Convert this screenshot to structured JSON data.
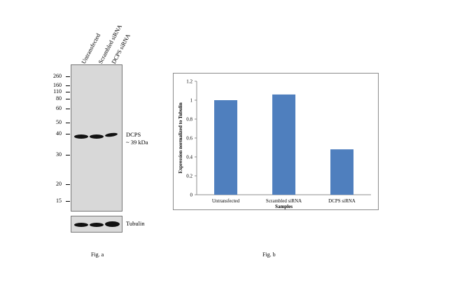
{
  "figure_a": {
    "lane_labels": [
      "Untransfected",
      "Scrambled siRNA",
      "DCPS siRNA"
    ],
    "mw_markers": [
      "260",
      "160",
      "110",
      "80",
      "60",
      "50",
      "40",
      "30",
      "20",
      "15"
    ],
    "target_label_line1": "DCPS",
    "target_label_line2": "~ 39 kDa",
    "loading_control_label": "Tubulin",
    "caption": "Fig. a"
  },
  "figure_b": {
    "caption": "Fig. b"
  },
  "chart_data": {
    "type": "bar",
    "categories": [
      "Untransfected",
      "Scrambled siRNA",
      "DCPS siRNA"
    ],
    "values": [
      1.0,
      1.06,
      0.48
    ],
    "xlabel": "Samples",
    "ylabel": "Expression normalized to Tubulin",
    "ylim": [
      0,
      1.2
    ],
    "yticks": [
      "0",
      "0.2",
      "0.4",
      "0.6",
      "0.8",
      "1",
      "1.2"
    ],
    "grid": false,
    "bar_color": "#4f7fbe"
  }
}
